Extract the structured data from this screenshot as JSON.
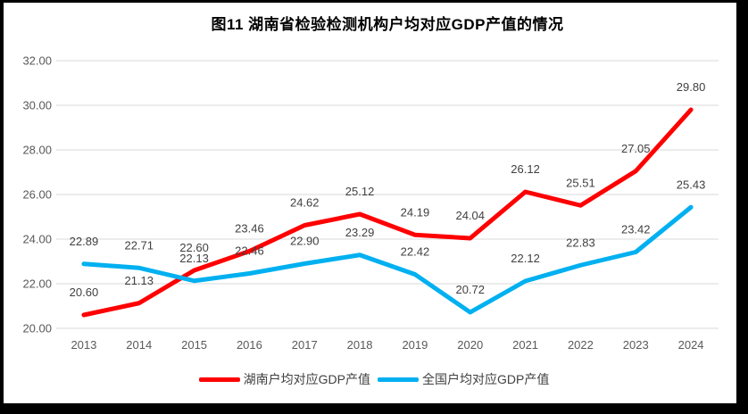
{
  "title": "图11 湖南省检验检测机构户均对应GDP产值的情况",
  "chart_data": {
    "type": "line",
    "title": "图11 湖南省检验检测机构户均对应GDP产值的情况",
    "categories": [
      "2013",
      "2014",
      "2015",
      "2016",
      "2017",
      "2018",
      "2019",
      "2020",
      "2021",
      "2022",
      "2023",
      "2024"
    ],
    "series": [
      {
        "id": "hunan-series",
        "name": "湖南户均对应GDP产值",
        "color": "#FF0000",
        "values": [
          20.6,
          21.13,
          22.6,
          23.46,
          24.62,
          25.12,
          24.19,
          24.04,
          26.12,
          25.51,
          27.05,
          29.8
        ]
      },
      {
        "id": "national-series",
        "name": "全国户均对应GDP产值",
        "color": "#00B0F0",
        "values": [
          22.89,
          22.71,
          22.13,
          22.46,
          22.9,
          23.29,
          22.42,
          20.72,
          22.12,
          22.83,
          23.42,
          25.43
        ]
      }
    ],
    "y_ticks": [
      "32.00",
      "30.00",
      "28.00",
      "26.00",
      "24.00",
      "22.00",
      "20.00"
    ],
    "ylim": [
      20,
      32
    ],
    "xlabel": "",
    "ylabel": "",
    "grid": true,
    "data_labels": true,
    "legend_position": "bottom"
  },
  "colors": {
    "gridline": "#D9D9D9",
    "axis_text": "#595959",
    "label_text": "#404040",
    "title_text": "#000000",
    "frame": "#000000"
  }
}
